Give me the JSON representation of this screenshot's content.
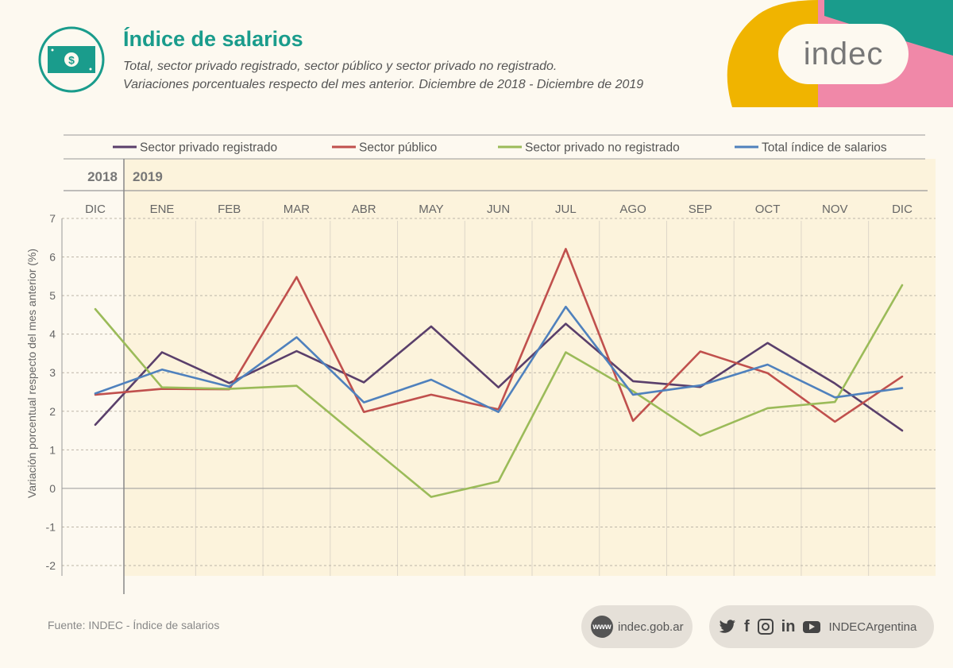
{
  "header": {
    "title": "Índice de salarios",
    "subtitle_line1": "Total, sector privado registrado, sector público y sector privado no registrado.",
    "subtitle_line2": "Variaciones porcentuales respecto del mes anterior. Diciembre de 2018 - Diciembre de 2019",
    "icon": "money-bill-icon",
    "brand": "indec"
  },
  "chart_data": {
    "type": "line",
    "title": "Índice de salarios",
    "ylabel": "Variación porcentual respecto del mes anterior (%)",
    "ylim": [
      -2,
      7
    ],
    "yticks": [
      -2,
      -1,
      0,
      1,
      2,
      3,
      4,
      5,
      6,
      7
    ],
    "grid": true,
    "legend_position": "top",
    "years": [
      {
        "label": "2018",
        "span": [
          "DIC"
        ]
      },
      {
        "label": "2019",
        "span": [
          "ENE",
          "FEB",
          "MAR",
          "ABR",
          "MAY",
          "JUN",
          "JUL",
          "AGO",
          "SEP",
          "OCT",
          "NOV",
          "DIC"
        ]
      }
    ],
    "categories": [
      "DIC",
      "ENE",
      "FEB",
      "MAR",
      "ABR",
      "MAY",
      "JUN",
      "JUL",
      "AGO",
      "SEP",
      "OCT",
      "NOV",
      "DIC"
    ],
    "series": [
      {
        "name": "Sector privado registrado",
        "color": "#5a3f6b",
        "values": [
          1.65,
          3.53,
          2.73,
          3.56,
          2.75,
          4.2,
          2.62,
          4.27,
          2.78,
          2.63,
          3.77,
          2.72,
          1.5
        ]
      },
      {
        "name": "Sector público",
        "color": "#c0504d",
        "values": [
          2.43,
          2.58,
          2.57,
          5.48,
          1.98,
          2.43,
          2.05,
          6.21,
          1.75,
          3.55,
          2.99,
          1.73,
          2.9
        ]
      },
      {
        "name": "Sector privado no registrado",
        "color": "#9bbb59",
        "values": [
          4.65,
          2.62,
          2.58,
          2.66,
          1.22,
          -0.22,
          0.18,
          3.53,
          2.52,
          1.37,
          2.08,
          2.24,
          5.27
        ]
      },
      {
        "name": "Total índice de salarios",
        "color": "#4f81bd",
        "values": [
          2.46,
          3.08,
          2.64,
          3.92,
          2.23,
          2.82,
          1.98,
          4.71,
          2.43,
          2.67,
          3.21,
          2.36,
          2.6
        ]
      }
    ]
  },
  "footer": {
    "source": "Fuente: INDEC - Índice de salarios",
    "www_badge": "www",
    "website": "indec.gob.ar",
    "social_handle": "INDECArgentina",
    "social_icons": [
      "twitter-icon",
      "facebook-icon",
      "instagram-icon",
      "linkedin-icon",
      "youtube-icon"
    ]
  },
  "colors": {
    "teal": "#1a9c8c",
    "yellow": "#f0b400",
    "pink": "#f088a8",
    "plot_bg": "#fcf3dc"
  }
}
